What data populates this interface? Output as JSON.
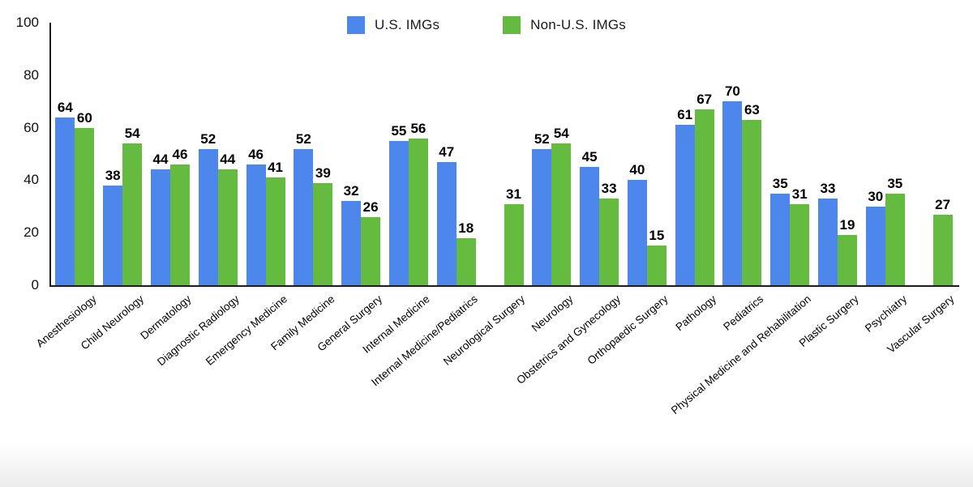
{
  "chart_data": {
    "type": "bar",
    "title": "",
    "xlabel": "",
    "ylabel": "",
    "categories": [
      "Anesthesiology",
      "Child Neurology",
      "Dermatology",
      "Diagnostic Radiology",
      "Emergency Medicine",
      "Family Medicine",
      "General Surgery",
      "Internal Medicine",
      "Internal Medicine/Pediatrics",
      "Neurological Surgery",
      "Neurology",
      "Obstetrics and Gynecology",
      "Orthopaedic Surgery",
      "Pathology",
      "Pediatrics",
      "Physical Medicine and Rehabilitation",
      "Plastic Surgery",
      "Psychiatry",
      "Vascular Surgery"
    ],
    "series": [
      {
        "name": "U.S. IMGs",
        "color": "#4d87ec",
        "values": [
          64,
          38,
          44,
          52,
          46,
          52,
          32,
          55,
          47,
          null,
          52,
          45,
          40,
          61,
          70,
          35,
          33,
          30,
          null
        ]
      },
      {
        "name": "Non-U.S. IMGs",
        "color": "#65bb40",
        "values": [
          60,
          54,
          46,
          44,
          41,
          39,
          26,
          56,
          18,
          31,
          54,
          33,
          15,
          67,
          63,
          31,
          19,
          35,
          27
        ]
      }
    ],
    "ylim": [
      0,
      100
    ],
    "yticks": [
      0,
      20,
      40,
      60,
      80,
      100
    ],
    "grid": false,
    "legend_position": "top",
    "bar_value_labels": true,
    "axis_color": "#1c1c1c",
    "label_color": "#000000"
  }
}
